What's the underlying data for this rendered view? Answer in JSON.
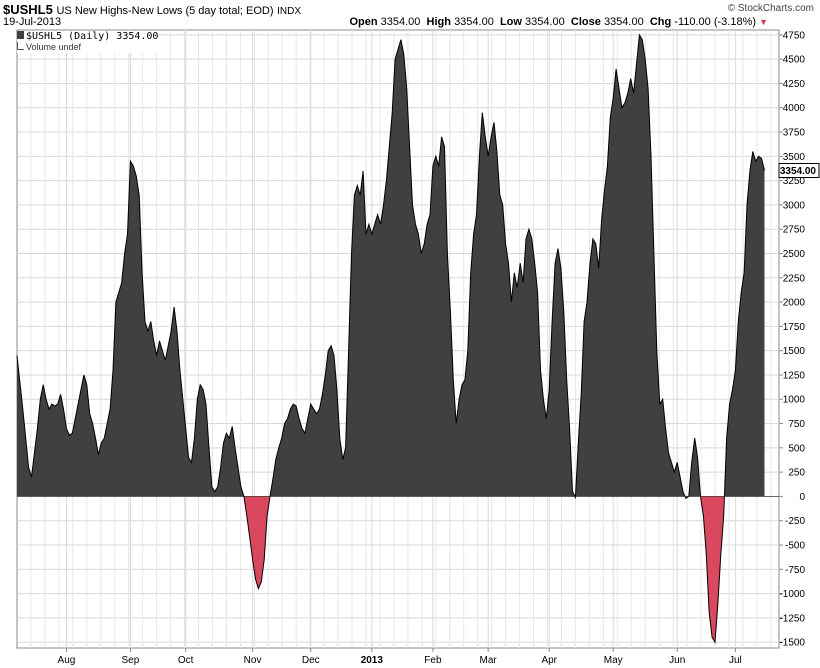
{
  "header": {
    "symbol": "$USHL5",
    "description": "US New Highs-New Lows (5 day total; EOD)",
    "source": "INDX",
    "date": "19-Jul-2013",
    "copyright": "© StockCharts.com",
    "open_label": "Open",
    "open_value": "3354.00",
    "high_label": "High",
    "high_value": "3354.00",
    "low_label": "Low",
    "low_value": "3354.00",
    "close_label": "Close",
    "close_value": "3354.00",
    "chg_label": "Chg",
    "chg_value": "-110.00 (-3.18%)",
    "chg_arrow": "▼"
  },
  "legend": {
    "series_label": "$USHL5 (Daily) 3354.00",
    "volume_label": "Volume undef"
  },
  "colors": {
    "positive_fill": "#404040",
    "negative_fill": "#d9485f",
    "grid": "#d8d8d8",
    "line": "#000000"
  },
  "chart_data": {
    "type": "area",
    "title": "$USHL5 US New Highs-New Lows (5 day total; EOD)",
    "series": [
      {
        "name": "$USHL5 (Daily)"
      }
    ],
    "last_value": "3354.00",
    "ylim": [
      -1560,
      4800
    ],
    "yticks": [
      -1500,
      -1250,
      -1000,
      -750,
      -500,
      -250,
      0,
      250,
      500,
      750,
      1000,
      1250,
      1500,
      1750,
      2000,
      2250,
      2500,
      2750,
      3000,
      3250,
      3500,
      3750,
      4000,
      4250,
      4500,
      4750
    ],
    "xlim": [
      0,
      262
    ],
    "month_ticks": [
      {
        "label": "Aug",
        "x": 17,
        "bold": false
      },
      {
        "label": "Sep",
        "x": 39,
        "bold": false
      },
      {
        "label": "Oct",
        "x": 58,
        "bold": false
      },
      {
        "label": "Nov",
        "x": 81,
        "bold": false
      },
      {
        "label": "Dec",
        "x": 101,
        "bold": false
      },
      {
        "label": "2013",
        "x": 122,
        "bold": true
      },
      {
        "label": "Feb",
        "x": 143,
        "bold": false
      },
      {
        "label": "Mar",
        "x": 162,
        "bold": false
      },
      {
        "label": "Apr",
        "x": 183,
        "bold": false
      },
      {
        "label": "May",
        "x": 205,
        "bold": false
      },
      {
        "label": "Jun",
        "x": 227,
        "bold": false
      },
      {
        "label": "Jul",
        "x": 247,
        "bold": false
      }
    ],
    "points": [
      [
        0,
        1450
      ],
      [
        2,
        900
      ],
      [
        4,
        300
      ],
      [
        5,
        200
      ],
      [
        7,
        700
      ],
      [
        8,
        1000
      ],
      [
        9,
        1150
      ],
      [
        10,
        1000
      ],
      [
        11,
        900
      ],
      [
        12,
        950
      ],
      [
        13,
        930
      ],
      [
        14,
        950
      ],
      [
        15,
        1050
      ],
      [
        16,
        900
      ],
      [
        17,
        700
      ],
      [
        18,
        630
      ],
      [
        19,
        650
      ],
      [
        20,
        800
      ],
      [
        21,
        950
      ],
      [
        22,
        1100
      ],
      [
        23,
        1250
      ],
      [
        24,
        1150
      ],
      [
        25,
        850
      ],
      [
        26,
        750
      ],
      [
        27,
        600
      ],
      [
        28,
        430
      ],
      [
        29,
        550
      ],
      [
        30,
        600
      ],
      [
        31,
        750
      ],
      [
        32,
        900
      ],
      [
        33,
        1300
      ],
      [
        34,
        2000
      ],
      [
        35,
        2100
      ],
      [
        36,
        2200
      ],
      [
        37,
        2500
      ],
      [
        38,
        2700
      ],
      [
        39,
        3450
      ],
      [
        40,
        3400
      ],
      [
        41,
        3300
      ],
      [
        42,
        3100
      ],
      [
        43,
        2300
      ],
      [
        44,
        1800
      ],
      [
        45,
        1700
      ],
      [
        46,
        1800
      ],
      [
        47,
        1600
      ],
      [
        48,
        1450
      ],
      [
        49,
        1600
      ],
      [
        50,
        1500
      ],
      [
        51,
        1400
      ],
      [
        52,
        1550
      ],
      [
        53,
        1700
      ],
      [
        54,
        1950
      ],
      [
        55,
        1700
      ],
      [
        56,
        1300
      ],
      [
        57,
        1000
      ],
      [
        58,
        700
      ],
      [
        59,
        400
      ],
      [
        60,
        350
      ],
      [
        61,
        600
      ],
      [
        62,
        1000
      ],
      [
        63,
        1150
      ],
      [
        64,
        1100
      ],
      [
        65,
        950
      ],
      [
        66,
        500
      ],
      [
        67,
        100
      ],
      [
        68,
        50
      ],
      [
        69,
        100
      ],
      [
        70,
        300
      ],
      [
        71,
        550
      ],
      [
        72,
        650
      ],
      [
        73,
        600
      ],
      [
        74,
        720
      ],
      [
        75,
        500
      ],
      [
        76,
        300
      ],
      [
        77,
        100
      ],
      [
        78,
        0
      ],
      [
        79,
        -200
      ],
      [
        80,
        -420
      ],
      [
        81,
        -650
      ],
      [
        82,
        -850
      ],
      [
        83,
        -950
      ],
      [
        84,
        -880
      ],
      [
        85,
        -650
      ],
      [
        86,
        -200
      ],
      [
        87,
        0
      ],
      [
        88,
        180
      ],
      [
        89,
        380
      ],
      [
        90,
        500
      ],
      [
        91,
        600
      ],
      [
        92,
        750
      ],
      [
        93,
        800
      ],
      [
        94,
        900
      ],
      [
        95,
        950
      ],
      [
        96,
        930
      ],
      [
        97,
        800
      ],
      [
        98,
        700
      ],
      [
        99,
        650
      ],
      [
        100,
        800
      ],
      [
        101,
        950
      ],
      [
        102,
        900
      ],
      [
        103,
        850
      ],
      [
        104,
        900
      ],
      [
        105,
        1050
      ],
      [
        106,
        1250
      ],
      [
        107,
        1500
      ],
      [
        108,
        1550
      ],
      [
        109,
        1450
      ],
      [
        110,
        1100
      ],
      [
        111,
        600
      ],
      [
        112,
        380
      ],
      [
        113,
        500
      ],
      [
        114,
        1500
      ],
      [
        115,
        2500
      ],
      [
        116,
        3100
      ],
      [
        117,
        3200
      ],
      [
        118,
        3100
      ],
      [
        119,
        3350
      ],
      [
        120,
        2700
      ],
      [
        121,
        2800
      ],
      [
        122,
        2700
      ],
      [
        123,
        2800
      ],
      [
        124,
        2900
      ],
      [
        125,
        2800
      ],
      [
        126,
        3000
      ],
      [
        127,
        3250
      ],
      [
        128,
        3600
      ],
      [
        129,
        3950
      ],
      [
        130,
        4500
      ],
      [
        131,
        4600
      ],
      [
        132,
        4700
      ],
      [
        133,
        4550
      ],
      [
        134,
        4200
      ],
      [
        135,
        3600
      ],
      [
        136,
        3000
      ],
      [
        137,
        2800
      ],
      [
        138,
        2700
      ],
      [
        139,
        2500
      ],
      [
        140,
        2600
      ],
      [
        141,
        2800
      ],
      [
        142,
        2900
      ],
      [
        143,
        3400
      ],
      [
        144,
        3500
      ],
      [
        145,
        3400
      ],
      [
        146,
        3700
      ],
      [
        147,
        3600
      ],
      [
        148,
        2500
      ],
      [
        149,
        1900
      ],
      [
        150,
        1200
      ],
      [
        151,
        750
      ],
      [
        152,
        1000
      ],
      [
        153,
        1150
      ],
      [
        154,
        1200
      ],
      [
        155,
        1500
      ],
      [
        156,
        2300
      ],
      [
        157,
        2700
      ],
      [
        158,
        2900
      ],
      [
        159,
        3500
      ],
      [
        160,
        3950
      ],
      [
        161,
        3700
      ],
      [
        162,
        3500
      ],
      [
        163,
        3700
      ],
      [
        164,
        3850
      ],
      [
        165,
        3550
      ],
      [
        166,
        3100
      ],
      [
        167,
        3000
      ],
      [
        168,
        2600
      ],
      [
        169,
        2400
      ],
      [
        170,
        2000
      ],
      [
        171,
        2300
      ],
      [
        172,
        2150
      ],
      [
        173,
        2400
      ],
      [
        174,
        2200
      ],
      [
        175,
        2650
      ],
      [
        176,
        2750
      ],
      [
        177,
        2650
      ],
      [
        178,
        2400
      ],
      [
        179,
        2100
      ],
      [
        180,
        1300
      ],
      [
        181,
        1000
      ],
      [
        182,
        800
      ],
      [
        183,
        1100
      ],
      [
        184,
        1800
      ],
      [
        185,
        2400
      ],
      [
        186,
        2550
      ],
      [
        187,
        2350
      ],
      [
        188,
        1900
      ],
      [
        189,
        1200
      ],
      [
        190,
        700
      ],
      [
        191,
        50
      ],
      [
        192,
        -10
      ],
      [
        193,
        550
      ],
      [
        194,
        1050
      ],
      [
        195,
        1800
      ],
      [
        196,
        2000
      ],
      [
        197,
        2400
      ],
      [
        198,
        2650
      ],
      [
        199,
        2600
      ],
      [
        200,
        2350
      ],
      [
        201,
        2850
      ],
      [
        202,
        3150
      ],
      [
        203,
        3400
      ],
      [
        204,
        3900
      ],
      [
        205,
        4100
      ],
      [
        206,
        4400
      ],
      [
        207,
        4200
      ],
      [
        208,
        4000
      ],
      [
        209,
        4050
      ],
      [
        210,
        4150
      ],
      [
        211,
        4300
      ],
      [
        212,
        4150
      ],
      [
        213,
        4450
      ],
      [
        214,
        4750
      ],
      [
        215,
        4700
      ],
      [
        216,
        4500
      ],
      [
        217,
        4200
      ],
      [
        218,
        3500
      ],
      [
        219,
        2500
      ],
      [
        220,
        1500
      ],
      [
        221,
        950
      ],
      [
        222,
        1000
      ],
      [
        223,
        700
      ],
      [
        224,
        450
      ],
      [
        225,
        350
      ],
      [
        226,
        250
      ],
      [
        227,
        350
      ],
      [
        228,
        200
      ],
      [
        229,
        50
      ],
      [
        230,
        -20
      ],
      [
        231,
        0
      ],
      [
        232,
        350
      ],
      [
        233,
        600
      ],
      [
        234,
        400
      ],
      [
        235,
        0
      ],
      [
        236,
        -200
      ],
      [
        237,
        -600
      ],
      [
        238,
        -1200
      ],
      [
        239,
        -1450
      ],
      [
        240,
        -1500
      ],
      [
        241,
        -1100
      ],
      [
        242,
        -600
      ],
      [
        243,
        -200
      ],
      [
        244,
        600
      ],
      [
        245,
        950
      ],
      [
        246,
        1100
      ],
      [
        247,
        1300
      ],
      [
        248,
        1800
      ],
      [
        249,
        2100
      ],
      [
        250,
        2300
      ],
      [
        251,
        3000
      ],
      [
        252,
        3350
      ],
      [
        253,
        3550
      ],
      [
        254,
        3450
      ],
      [
        255,
        3500
      ],
      [
        256,
        3480
      ],
      [
        257,
        3354
      ]
    ]
  }
}
